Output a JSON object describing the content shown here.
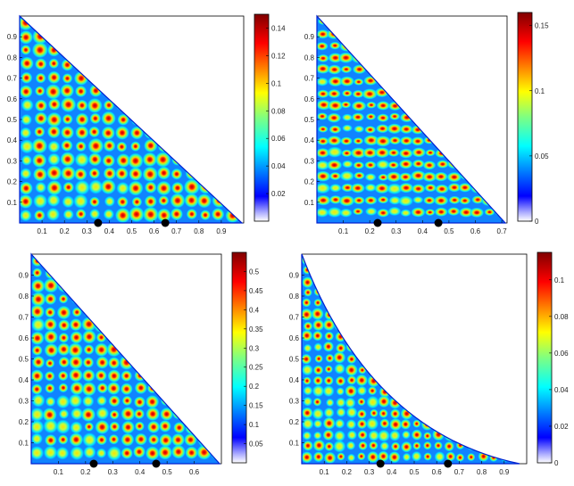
{
  "chart_data": [
    {
      "type": "heatmap",
      "title": "",
      "domain_shape": "right-triangle",
      "xlim": [
        0,
        1
      ],
      "ylim": [
        0,
        1
      ],
      "xticks": [
        "0.1",
        "0.2",
        "0.3",
        "0.4",
        "0.5",
        "0.6",
        "0.7",
        "0.8",
        "0.9"
      ],
      "yticks": [
        "0.1",
        "0.2",
        "0.3",
        "0.4",
        "0.5",
        "0.6",
        "0.7",
        "0.8",
        "0.9"
      ],
      "colorbar": {
        "min": 0,
        "max": 0.15,
        "ticks": [
          "0.02",
          "0.04",
          "0.06",
          "0.08",
          "0.1",
          "0.12",
          "0.14"
        ]
      },
      "markers": [
        {
          "x": 0.35,
          "y": 0
        },
        {
          "x": 0.65,
          "y": 0
        }
      ]
    },
    {
      "type": "heatmap",
      "title": "",
      "domain_shape": "right-triangle",
      "xlim": [
        0,
        0.72
      ],
      "ylim": [
        0,
        1
      ],
      "xticks": [
        "0.1",
        "0.2",
        "0.3",
        "0.4",
        "0.5",
        "0.6",
        "0.7"
      ],
      "yticks": [
        "0.1",
        "0.2",
        "0.3",
        "0.4",
        "0.5",
        "0.6",
        "0.7",
        "0.8",
        "0.9"
      ],
      "colorbar": {
        "min": 0,
        "max": 0.16,
        "ticks": [
          "0",
          "0.05",
          "0.1",
          "0.15"
        ]
      },
      "markers": [
        {
          "x": 0.23,
          "y": 0
        },
        {
          "x": 0.46,
          "y": 0
        }
      ]
    },
    {
      "type": "heatmap",
      "title": "",
      "domain_shape": "right-triangle",
      "xlim": [
        0,
        0.7
      ],
      "ylim": [
        0,
        1
      ],
      "xticks": [
        "0.1",
        "0.2",
        "0.3",
        "0.4",
        "0.5",
        "0.6"
      ],
      "yticks": [
        "0.1",
        "0.2",
        "0.3",
        "0.4",
        "0.5",
        "0.6",
        "0.7",
        "0.8",
        "0.9"
      ],
      "colorbar": {
        "min": 0,
        "max": 0.55,
        "ticks": [
          "0.05",
          "0.1",
          "0.15",
          "0.2",
          "0.25",
          "0.3",
          "0.35",
          "0.4",
          "0.45",
          "0.5"
        ]
      },
      "markers": [
        {
          "x": 0.23,
          "y": 0
        },
        {
          "x": 0.46,
          "y": 0
        }
      ]
    },
    {
      "type": "heatmap",
      "title": "",
      "domain_shape": "concave-triangle",
      "xlim": [
        0,
        1
      ],
      "ylim": [
        0,
        1
      ],
      "xticks": [
        "0.1",
        "0.2",
        "0.3",
        "0.4",
        "0.5",
        "0.6",
        "0.7",
        "0.8",
        "0.9"
      ],
      "yticks": [
        "0.1",
        "0.2",
        "0.3",
        "0.4",
        "0.5",
        "0.6",
        "0.7",
        "0.8",
        "0.9"
      ],
      "colorbar": {
        "min": 0,
        "max": 0.115,
        "ticks": [
          "0",
          "0.02",
          "0.04",
          "0.06",
          "0.08",
          "0.1"
        ]
      },
      "markers": [
        {
          "x": 0.35,
          "y": 0
        },
        {
          "x": 0.65,
          "y": 0
        }
      ]
    }
  ]
}
